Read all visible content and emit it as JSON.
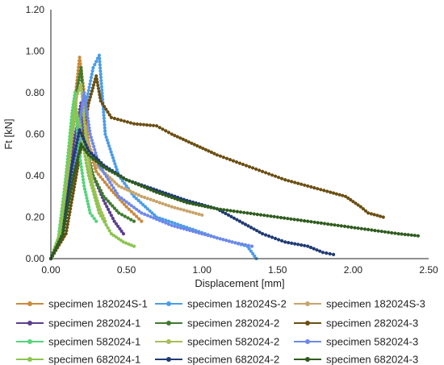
{
  "chart_data": {
    "type": "line",
    "title": "",
    "xlabel": "Displacement [mm]",
    "ylabel": "Ft [kN]",
    "xlim": [
      0,
      2.5
    ],
    "ylim": [
      0,
      1.2
    ],
    "x_ticks": [
      "0.00",
      "0.50",
      "1.00",
      "1.50",
      "2.00",
      "2.50"
    ],
    "y_ticks": [
      "0.00",
      "0.20",
      "0.40",
      "0.60",
      "0.80",
      "1.00",
      "1.20"
    ],
    "grid": false,
    "legend_position": "bottom",
    "series": [
      {
        "name": "specimen 182024S-1",
        "color": "#c98a3c",
        "points": [
          [
            0,
            0
          ],
          [
            0.05,
            0.08
          ],
          [
            0.1,
            0.35
          ],
          [
            0.15,
            0.7
          ],
          [
            0.19,
            0.97
          ],
          [
            0.22,
            0.8
          ],
          [
            0.25,
            0.55
          ],
          [
            0.3,
            0.42
          ],
          [
            0.4,
            0.33
          ],
          [
            0.5,
            0.25
          ],
          [
            0.6,
            0.18
          ]
        ]
      },
      {
        "name": "specimen 182024S-2",
        "color": "#4b9ce8",
        "points": [
          [
            0,
            0
          ],
          [
            0.08,
            0.12
          ],
          [
            0.15,
            0.4
          ],
          [
            0.22,
            0.7
          ],
          [
            0.28,
            0.92
          ],
          [
            0.32,
            0.98
          ],
          [
            0.36,
            0.6
          ],
          [
            0.45,
            0.4
          ],
          [
            0.55,
            0.3
          ],
          [
            0.7,
            0.2
          ],
          [
            0.9,
            0.15
          ],
          [
            1.1,
            0.1
          ],
          [
            1.3,
            0.06
          ],
          [
            1.36,
            0.0
          ]
        ]
      },
      {
        "name": "specimen 182024S-3",
        "color": "#c8a46a",
        "points": [
          [
            0,
            0
          ],
          [
            0.08,
            0.12
          ],
          [
            0.15,
            0.45
          ],
          [
            0.2,
            0.7
          ],
          [
            0.23,
            0.6
          ],
          [
            0.3,
            0.45
          ],
          [
            0.45,
            0.35
          ],
          [
            0.6,
            0.3
          ],
          [
            0.8,
            0.25
          ],
          [
            1.0,
            0.21
          ]
        ]
      },
      {
        "name": "specimen 282024-1",
        "color": "#5a3f8e",
        "points": [
          [
            0,
            0
          ],
          [
            0.08,
            0.15
          ],
          [
            0.15,
            0.55
          ],
          [
            0.2,
            0.75
          ],
          [
            0.23,
            0.55
          ],
          [
            0.28,
            0.4
          ],
          [
            0.35,
            0.28
          ],
          [
            0.42,
            0.18
          ],
          [
            0.48,
            0.12
          ]
        ]
      },
      {
        "name": "specimen 282024-2",
        "color": "#3f7a2e",
        "points": [
          [
            0,
            0
          ],
          [
            0.06,
            0.1
          ],
          [
            0.12,
            0.45
          ],
          [
            0.17,
            0.8
          ],
          [
            0.2,
            0.92
          ],
          [
            0.23,
            0.55
          ],
          [
            0.28,
            0.4
          ],
          [
            0.35,
            0.3
          ],
          [
            0.45,
            0.22
          ],
          [
            0.55,
            0.18
          ]
        ]
      },
      {
        "name": "specimen 282024-3",
        "color": "#6b4f12",
        "points": [
          [
            0,
            0
          ],
          [
            0.1,
            0.12
          ],
          [
            0.18,
            0.45
          ],
          [
            0.25,
            0.75
          ],
          [
            0.3,
            0.88
          ],
          [
            0.33,
            0.76
          ],
          [
            0.4,
            0.68
          ],
          [
            0.55,
            0.65
          ],
          [
            0.7,
            0.64
          ],
          [
            0.8,
            0.6
          ],
          [
            0.95,
            0.55
          ],
          [
            1.1,
            0.5
          ],
          [
            1.25,
            0.46
          ],
          [
            1.4,
            0.42
          ],
          [
            1.55,
            0.38
          ],
          [
            1.7,
            0.35
          ],
          [
            1.85,
            0.32
          ],
          [
            1.95,
            0.3
          ],
          [
            2.05,
            0.25
          ],
          [
            2.1,
            0.22
          ],
          [
            2.2,
            0.2
          ]
        ]
      },
      {
        "name": "specimen 582024-1",
        "color": "#55d47a",
        "points": [
          [
            0,
            0
          ],
          [
            0.05,
            0.1
          ],
          [
            0.1,
            0.4
          ],
          [
            0.14,
            0.7
          ],
          [
            0.16,
            0.8
          ],
          [
            0.18,
            0.55
          ],
          [
            0.22,
            0.35
          ],
          [
            0.26,
            0.22
          ],
          [
            0.3,
            0.18
          ]
        ]
      },
      {
        "name": "specimen 582024-2",
        "color": "#a7bd5a",
        "points": [
          [
            0,
            0
          ],
          [
            0.06,
            0.12
          ],
          [
            0.12,
            0.45
          ],
          [
            0.17,
            0.78
          ],
          [
            0.2,
            0.84
          ],
          [
            0.24,
            0.52
          ],
          [
            0.28,
            0.35
          ],
          [
            0.32,
            0.25
          ],
          [
            0.36,
            0.18
          ]
        ]
      },
      {
        "name": "specimen 582024-3",
        "color": "#6f88e8",
        "points": [
          [
            0,
            0
          ],
          [
            0.08,
            0.12
          ],
          [
            0.16,
            0.5
          ],
          [
            0.22,
            0.8
          ],
          [
            0.26,
            0.6
          ],
          [
            0.32,
            0.45
          ],
          [
            0.45,
            0.3
          ],
          [
            0.6,
            0.22
          ],
          [
            0.8,
            0.16
          ],
          [
            1.0,
            0.12
          ],
          [
            1.2,
            0.08
          ],
          [
            1.33,
            0.06
          ]
        ]
      },
      {
        "name": "specimen 682024-1",
        "color": "#8cc450",
        "points": [
          [
            0,
            0
          ],
          [
            0.06,
            0.12
          ],
          [
            0.12,
            0.5
          ],
          [
            0.16,
            0.75
          ],
          [
            0.2,
            0.6
          ],
          [
            0.25,
            0.4
          ],
          [
            0.32,
            0.22
          ],
          [
            0.4,
            0.12
          ],
          [
            0.48,
            0.08
          ],
          [
            0.55,
            0.06
          ]
        ]
      },
      {
        "name": "specimen 682024-2",
        "color": "#1f3b73",
        "points": [
          [
            0,
            0
          ],
          [
            0.08,
            0.12
          ],
          [
            0.14,
            0.45
          ],
          [
            0.19,
            0.62
          ],
          [
            0.25,
            0.52
          ],
          [
            0.35,
            0.45
          ],
          [
            0.5,
            0.38
          ],
          [
            0.7,
            0.33
          ],
          [
            0.9,
            0.28
          ],
          [
            1.1,
            0.24
          ],
          [
            1.25,
            0.18
          ],
          [
            1.4,
            0.12
          ],
          [
            1.55,
            0.08
          ],
          [
            1.7,
            0.06
          ],
          [
            1.8,
            0.03
          ],
          [
            1.87,
            0.02
          ]
        ]
      },
      {
        "name": "specimen 682024-3",
        "color": "#2f5c1e",
        "points": [
          [
            0,
            0
          ],
          [
            0.08,
            0.12
          ],
          [
            0.15,
            0.4
          ],
          [
            0.2,
            0.55
          ],
          [
            0.25,
            0.5
          ],
          [
            0.35,
            0.44
          ],
          [
            0.5,
            0.38
          ],
          [
            0.7,
            0.32
          ],
          [
            0.9,
            0.27
          ],
          [
            1.1,
            0.24
          ],
          [
            1.3,
            0.22
          ],
          [
            1.5,
            0.2
          ],
          [
            1.7,
            0.18
          ],
          [
            1.9,
            0.16
          ],
          [
            2.1,
            0.14
          ],
          [
            2.3,
            0.12
          ],
          [
            2.43,
            0.11
          ]
        ]
      }
    ]
  }
}
